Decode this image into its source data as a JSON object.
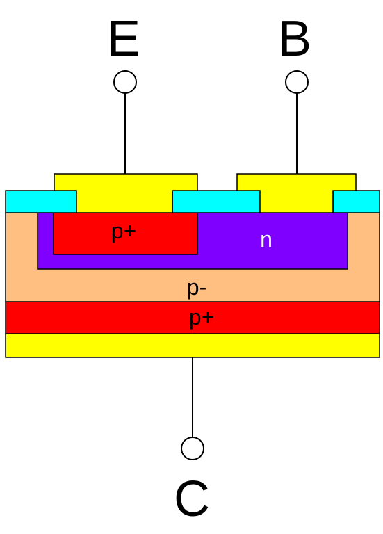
{
  "terminals": {
    "emitter": {
      "label": "E"
    },
    "base": {
      "label": "B"
    },
    "collector": {
      "label": "C"
    }
  },
  "layers": {
    "emitter_region": {
      "label": "p+"
    },
    "base_region": {
      "label": "n"
    },
    "drift_region": {
      "label": "p-"
    },
    "substrate": {
      "label": "p+"
    }
  },
  "colors": {
    "metal": "#ffff00",
    "oxide": "#00ffff",
    "p_plus": "#ff0000",
    "n_region": "#8000ff",
    "p_minus": "#ffbf80",
    "outline": "#000000",
    "n_label": "#ffffff",
    "dark_label": "#000000"
  }
}
